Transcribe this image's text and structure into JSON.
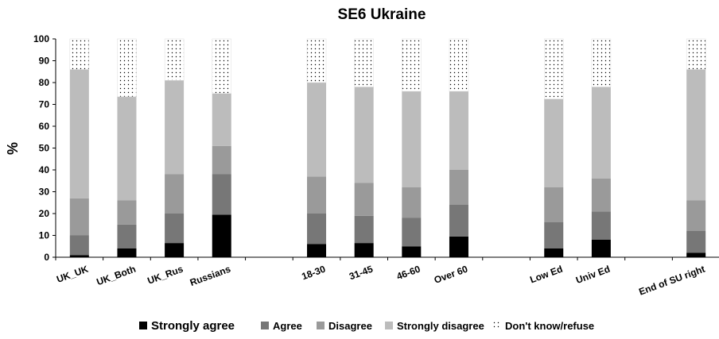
{
  "chart_data": {
    "type": "stacked_bar",
    "title": "SE6 Ukraine",
    "y_label": "%",
    "categories": [
      "UK_UK",
      "UK_Both",
      "UK_Rus",
      "Russians",
      null,
      "18-30",
      "31-45",
      "46-60",
      "Over 60",
      null,
      "Low Ed",
      "Univ Ed",
      null,
      "End of SU right"
    ],
    "series": [
      {
        "name": "Strongly agree",
        "color": "#000000",
        "values": [
          1,
          4,
          6.5,
          19.5,
          null,
          6,
          6.5,
          5,
          9.5,
          null,
          4,
          8,
          null,
          2
        ]
      },
      {
        "name": "Agree",
        "color": "#777777",
        "values": [
          9,
          11,
          13.5,
          18.5,
          null,
          14,
          12.5,
          13,
          14.5,
          null,
          12,
          13,
          null,
          10
        ]
      },
      {
        "name": "Disagree",
        "color": "#9a9a9a",
        "values": [
          17,
          11,
          18,
          13,
          null,
          17,
          15,
          14,
          16,
          null,
          16,
          15,
          null,
          14
        ]
      },
      {
        "name": "Strongly disagree",
        "color": "#bcbcbc",
        "values": [
          59,
          47.5,
          43,
          24,
          null,
          43,
          44,
          44,
          36,
          null,
          40.5,
          42,
          null,
          60
        ]
      },
      {
        "name": "Don't know/refuse",
        "color": "#ffffff",
        "pattern": "dots",
        "values": [
          14,
          26.5,
          19,
          25,
          null,
          20,
          22,
          24,
          24,
          null,
          27.5,
          22,
          null,
          14
        ]
      }
    ],
    "ylim": [
      0,
      100
    ],
    "yticks": [
      0,
      10,
      20,
      30,
      40,
      50,
      60,
      70,
      80,
      90,
      100
    ],
    "grid": false,
    "legend": "bottom"
  }
}
